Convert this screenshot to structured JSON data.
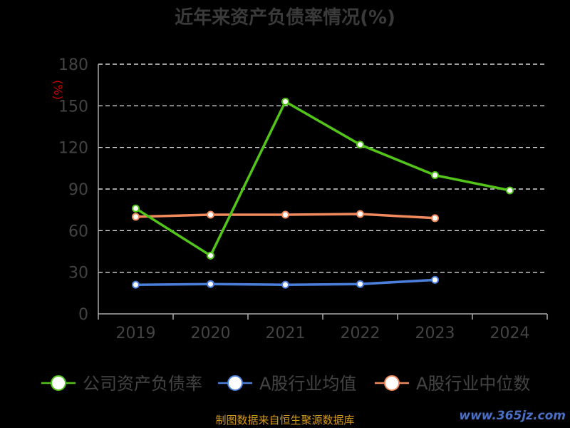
{
  "title": "近年来资产负债率情况(%)",
  "footer": "制图数据来自恒生聚源数据库",
  "watermark": "www.365jz.com",
  "chart_data": {
    "type": "line",
    "title": "近年来资产负债率情况(%)",
    "ylabel": "(%)",
    "xlabel": "",
    "categories": [
      "2019",
      "2020",
      "2021",
      "2022",
      "2023",
      "2024"
    ],
    "ylim": [
      0,
      180
    ],
    "yticks": [
      0,
      30,
      60,
      90,
      120,
      150,
      180
    ],
    "grid": true,
    "legend_position": "bottom",
    "series": [
      {
        "name": "公司资产负债率",
        "color": "#52c41a",
        "values": [
          76,
          42,
          153,
          122,
          100,
          89
        ]
      },
      {
        "name": "A股行业均值",
        "color": "#4a7fdc",
        "values": [
          21,
          21.5,
          21,
          21.5,
          24.5,
          null
        ]
      },
      {
        "name": "A股行业中位数",
        "color": "#f08a5d",
        "values": [
          70,
          71.5,
          71.5,
          72,
          69,
          null
        ]
      }
    ]
  },
  "colors": {
    "grid": "#ffffff",
    "axis": "#aaaaaa",
    "tick_label": "#444444",
    "ylabel": "#cc0000"
  }
}
